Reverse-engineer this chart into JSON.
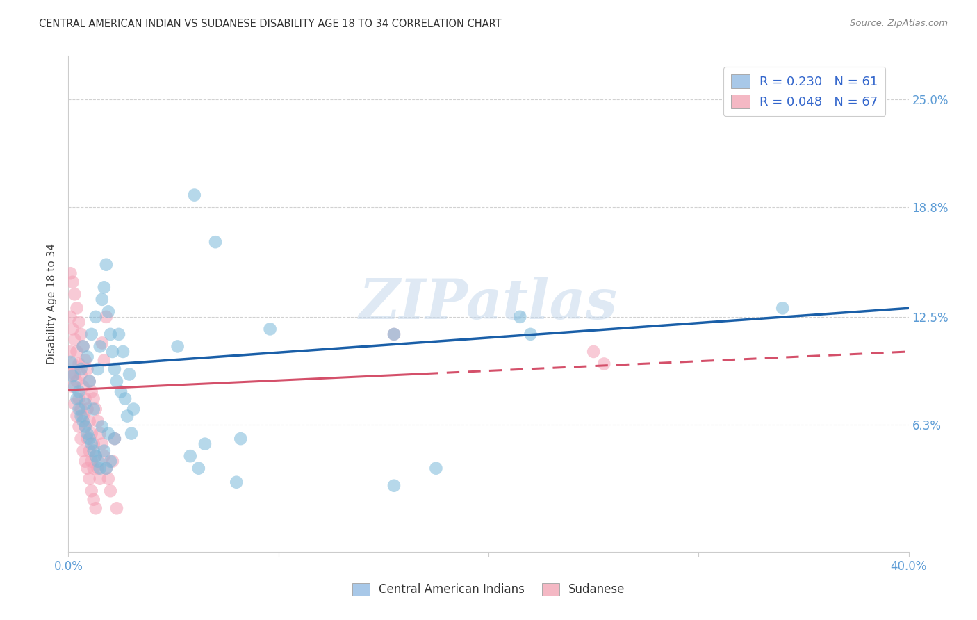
{
  "title": "CENTRAL AMERICAN INDIAN VS SUDANESE DISABILITY AGE 18 TO 34 CORRELATION CHART",
  "source": "Source: ZipAtlas.com",
  "ylabel": "Disability Age 18 to 34",
  "ytick_labels": [
    "6.3%",
    "12.5%",
    "18.8%",
    "25.0%"
  ],
  "ytick_values": [
    0.063,
    0.125,
    0.188,
    0.25
  ],
  "xlim": [
    0.0,
    0.4
  ],
  "ylim": [
    -0.01,
    0.275
  ],
  "watermark": "ZIPatlas",
  "blue_scatter": [
    [
      0.001,
      0.099
    ],
    [
      0.002,
      0.091
    ],
    [
      0.003,
      0.085
    ],
    [
      0.004,
      0.078
    ],
    [
      0.005,
      0.072
    ],
    [
      0.005,
      0.082
    ],
    [
      0.006,
      0.068
    ],
    [
      0.006,
      0.095
    ],
    [
      0.007,
      0.065
    ],
    [
      0.007,
      0.108
    ],
    [
      0.008,
      0.062
    ],
    [
      0.008,
      0.075
    ],
    [
      0.009,
      0.058
    ],
    [
      0.009,
      0.102
    ],
    [
      0.01,
      0.055
    ],
    [
      0.01,
      0.088
    ],
    [
      0.011,
      0.052
    ],
    [
      0.011,
      0.115
    ],
    [
      0.012,
      0.048
    ],
    [
      0.012,
      0.072
    ],
    [
      0.013,
      0.045
    ],
    [
      0.013,
      0.125
    ],
    [
      0.014,
      0.042
    ],
    [
      0.014,
      0.095
    ],
    [
      0.015,
      0.038
    ],
    [
      0.015,
      0.108
    ],
    [
      0.016,
      0.135
    ],
    [
      0.016,
      0.062
    ],
    [
      0.017,
      0.142
    ],
    [
      0.017,
      0.048
    ],
    [
      0.018,
      0.155
    ],
    [
      0.018,
      0.038
    ],
    [
      0.019,
      0.128
    ],
    [
      0.019,
      0.058
    ],
    [
      0.02,
      0.115
    ],
    [
      0.02,
      0.042
    ],
    [
      0.021,
      0.105
    ],
    [
      0.022,
      0.095
    ],
    [
      0.022,
      0.055
    ],
    [
      0.023,
      0.088
    ],
    [
      0.024,
      0.115
    ],
    [
      0.025,
      0.082
    ],
    [
      0.026,
      0.105
    ],
    [
      0.027,
      0.078
    ],
    [
      0.028,
      0.068
    ],
    [
      0.029,
      0.092
    ],
    [
      0.03,
      0.058
    ],
    [
      0.031,
      0.072
    ],
    [
      0.052,
      0.108
    ],
    [
      0.058,
      0.045
    ],
    [
      0.062,
      0.038
    ],
    [
      0.065,
      0.052
    ],
    [
      0.08,
      0.03
    ],
    [
      0.082,
      0.055
    ],
    [
      0.096,
      0.118
    ],
    [
      0.155,
      0.115
    ],
    [
      0.155,
      0.028
    ],
    [
      0.175,
      0.038
    ],
    [
      0.215,
      0.125
    ],
    [
      0.22,
      0.115
    ],
    [
      0.34,
      0.13
    ],
    [
      0.06,
      0.195
    ],
    [
      0.07,
      0.168
    ]
  ],
  "pink_scatter": [
    [
      0.001,
      0.15
    ],
    [
      0.001,
      0.125
    ],
    [
      0.001,
      0.105
    ],
    [
      0.001,
      0.092
    ],
    [
      0.002,
      0.145
    ],
    [
      0.002,
      0.118
    ],
    [
      0.002,
      0.098
    ],
    [
      0.002,
      0.085
    ],
    [
      0.003,
      0.138
    ],
    [
      0.003,
      0.112
    ],
    [
      0.003,
      0.092
    ],
    [
      0.003,
      0.075
    ],
    [
      0.004,
      0.13
    ],
    [
      0.004,
      0.105
    ],
    [
      0.004,
      0.088
    ],
    [
      0.004,
      0.068
    ],
    [
      0.005,
      0.122
    ],
    [
      0.005,
      0.098
    ],
    [
      0.005,
      0.078
    ],
    [
      0.005,
      0.062
    ],
    [
      0.006,
      0.115
    ],
    [
      0.006,
      0.092
    ],
    [
      0.006,
      0.072
    ],
    [
      0.006,
      0.055
    ],
    [
      0.007,
      0.108
    ],
    [
      0.007,
      0.085
    ],
    [
      0.007,
      0.068
    ],
    [
      0.007,
      0.048
    ],
    [
      0.008,
      0.1
    ],
    [
      0.008,
      0.078
    ],
    [
      0.008,
      0.062
    ],
    [
      0.008,
      0.042
    ],
    [
      0.009,
      0.095
    ],
    [
      0.009,
      0.072
    ],
    [
      0.009,
      0.055
    ],
    [
      0.009,
      0.038
    ],
    [
      0.01,
      0.088
    ],
    [
      0.01,
      0.065
    ],
    [
      0.01,
      0.048
    ],
    [
      0.01,
      0.032
    ],
    [
      0.011,
      0.082
    ],
    [
      0.011,
      0.058
    ],
    [
      0.011,
      0.042
    ],
    [
      0.011,
      0.025
    ],
    [
      0.012,
      0.078
    ],
    [
      0.012,
      0.052
    ],
    [
      0.012,
      0.038
    ],
    [
      0.012,
      0.02
    ],
    [
      0.013,
      0.072
    ],
    [
      0.013,
      0.045
    ],
    [
      0.013,
      0.015
    ],
    [
      0.014,
      0.065
    ],
    [
      0.014,
      0.038
    ],
    [
      0.015,
      0.058
    ],
    [
      0.015,
      0.032
    ],
    [
      0.016,
      0.052
    ],
    [
      0.016,
      0.11
    ],
    [
      0.017,
      0.045
    ],
    [
      0.017,
      0.1
    ],
    [
      0.018,
      0.038
    ],
    [
      0.018,
      0.125
    ],
    [
      0.019,
      0.032
    ],
    [
      0.02,
      0.025
    ],
    [
      0.021,
      0.042
    ],
    [
      0.022,
      0.055
    ],
    [
      0.023,
      0.015
    ],
    [
      0.155,
      0.115
    ],
    [
      0.25,
      0.105
    ],
    [
      0.255,
      0.098
    ]
  ],
  "blue_line": {
    "x0": 0.0,
    "y0": 0.096,
    "x1": 0.4,
    "y1": 0.13
  },
  "pink_line": {
    "x0": 0.0,
    "y0": 0.083,
    "x1": 0.4,
    "y1": 0.105
  },
  "pink_line_solid_end": 0.17,
  "blue_dot_color": "#7ab8d9",
  "pink_dot_color": "#f4a0b5",
  "blue_line_color": "#1a5fa8",
  "pink_line_color": "#d4506a",
  "background_color": "#ffffff",
  "grid_color": "#cccccc",
  "title_color": "#333333",
  "axis_label_color": "#5b9bd5",
  "ytick_color": "#5b9bd5",
  "legend_blue_color": "#a8c8e8",
  "legend_pink_color": "#f4b8c4"
}
